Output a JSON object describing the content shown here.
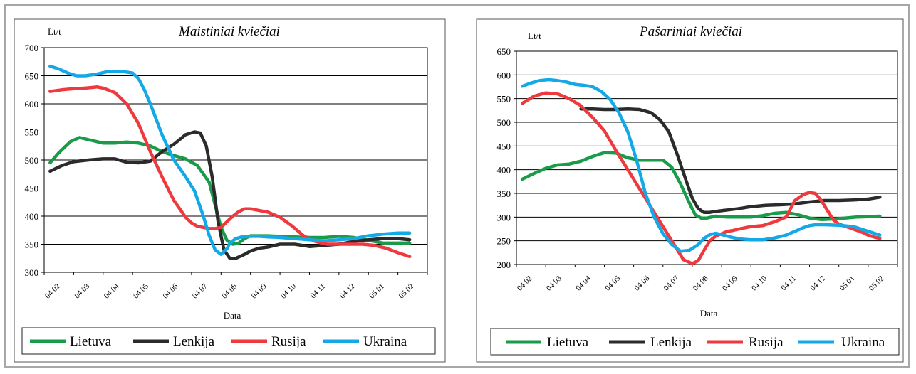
{
  "colors": {
    "Lietuva": "#1a9b4a",
    "Lenkija": "#2b2b2b",
    "Rusija": "#ee3a3f",
    "Ukraina": "#14a9e6"
  },
  "chart_data": [
    {
      "type": "line",
      "title": "Maistiniai kviečiai",
      "ylabel": "Lt/t",
      "xlabel": "Data",
      "ylim": [
        300,
        700
      ],
      "yticks": [
        "700",
        "650",
        "600",
        "550",
        "500",
        "450",
        "400",
        "350",
        "300"
      ],
      "categories": [
        "04 02",
        "04 03",
        "04 04",
        "04 05",
        "04 06",
        "04 07",
        "04 08",
        "04 09",
        "04 10",
        "04 11",
        "04 12",
        "05 01",
        "05 02"
      ],
      "grid": "horizontal",
      "legend": "bottom",
      "series": [
        {
          "name": "Lietuva",
          "x": [
            0.2,
            0.5,
            0.9,
            1.2,
            1.6,
            2.0,
            2.4,
            2.8,
            3.2,
            3.6,
            4.0,
            4.4,
            4.8,
            5.2,
            5.6,
            5.8,
            6.0,
            6.2,
            6.4,
            6.6,
            6.8,
            7.0,
            7.3,
            7.6,
            8.0,
            8.5,
            9.0,
            9.5,
            10.0,
            10.5,
            11.0,
            11.5,
            12.0,
            12.4
          ],
          "y": [
            495,
            513,
            533,
            540,
            535,
            530,
            530,
            532,
            530,
            525,
            515,
            508,
            502,
            490,
            460,
            420,
            380,
            357,
            350,
            352,
            360,
            365,
            365,
            365,
            364,
            363,
            362,
            362,
            364,
            362,
            357,
            352,
            352,
            352
          ]
        },
        {
          "name": "Lenkija",
          "x": [
            0.2,
            0.6,
            1.0,
            1.5,
            2.0,
            2.4,
            2.8,
            3.2,
            3.6,
            4.0,
            4.4,
            4.8,
            5.1,
            5.3,
            5.5,
            5.7,
            5.9,
            6.1,
            6.3,
            6.5,
            6.8,
            7.0,
            7.3,
            7.6,
            8.0,
            8.5,
            9.0,
            9.5,
            10.0,
            10.5,
            11.0,
            11.5,
            12.0,
            12.4
          ],
          "y": [
            480,
            490,
            497,
            500,
            502,
            502,
            496,
            495,
            498,
            515,
            528,
            545,
            550,
            548,
            525,
            470,
            390,
            340,
            325,
            325,
            332,
            338,
            343,
            345,
            350,
            350,
            346,
            348,
            350,
            355,
            358,
            360,
            360,
            358
          ]
        },
        {
          "name": "Rusija",
          "x": [
            0.2,
            0.6,
            1.0,
            1.4,
            1.8,
            2.0,
            2.4,
            2.8,
            3.2,
            3.6,
            4.0,
            4.4,
            4.8,
            5.0,
            5.2,
            5.4,
            5.6,
            5.8,
            6.0,
            6.2,
            6.4,
            6.6,
            6.8,
            7.0,
            7.3,
            7.6,
            8.0,
            8.4,
            8.8,
            9.2,
            9.6,
            10.0,
            10.4,
            10.8,
            11.2,
            11.6,
            12.0,
            12.4
          ],
          "y": [
            622,
            625,
            627,
            628,
            630,
            628,
            620,
            600,
            565,
            515,
            470,
            428,
            398,
            388,
            382,
            380,
            378,
            378,
            380,
            390,
            400,
            408,
            413,
            413,
            410,
            407,
            398,
            383,
            365,
            355,
            350,
            350,
            350,
            350,
            348,
            343,
            335,
            328
          ]
        },
        {
          "name": "Ukraina",
          "x": [
            0.2,
            0.5,
            0.8,
            1.1,
            1.4,
            1.8,
            2.2,
            2.6,
            3.0,
            3.2,
            3.4,
            3.6,
            4.0,
            4.4,
            4.8,
            5.1,
            5.4,
            5.6,
            5.8,
            6.0,
            6.2,
            6.3,
            6.5,
            6.7,
            7.0,
            7.3,
            7.6,
            8.0,
            8.5,
            9.0,
            9.5,
            10.0,
            10.5,
            11.0,
            11.5,
            12.0,
            12.4
          ],
          "y": [
            667,
            662,
            655,
            650,
            650,
            653,
            658,
            658,
            655,
            645,
            625,
            600,
            545,
            500,
            470,
            445,
            400,
            365,
            340,
            332,
            342,
            352,
            360,
            363,
            364,
            364,
            363,
            362,
            360,
            358,
            356,
            358,
            360,
            365,
            368,
            370,
            370
          ]
        }
      ]
    },
    {
      "type": "line",
      "title": "Pašariniai kviečiai",
      "ylabel": "Lt/t",
      "xlabel": "Data",
      "ylim": [
        200,
        650
      ],
      "yticks": [
        "650",
        "600",
        "550",
        "500",
        "450",
        "400",
        "350",
        "300",
        "250",
        "200"
      ],
      "categories": [
        "04 02",
        "04 03",
        "04 04",
        "04 05",
        "04 06",
        "04 07",
        "04 08",
        "04 09",
        "04 10",
        "04 11",
        "04 12",
        "05 01",
        "05 02"
      ],
      "grid": "horizontal",
      "legend": "bottom",
      "series": [
        {
          "name": "Lietuva",
          "x": [
            0.2,
            0.6,
            1.0,
            1.4,
            1.8,
            2.2,
            2.6,
            3.0,
            3.4,
            3.8,
            4.2,
            4.6,
            5.0,
            5.3,
            5.6,
            5.9,
            6.1,
            6.3,
            6.5,
            6.8,
            7.2,
            7.6,
            8.0,
            8.4,
            8.8,
            9.2,
            9.6,
            10.0,
            10.4,
            10.8,
            11.2,
            11.6,
            12.0,
            12.4
          ],
          "y": [
            380,
            392,
            403,
            410,
            412,
            418,
            428,
            436,
            435,
            425,
            420,
            420,
            420,
            405,
            370,
            330,
            305,
            298,
            298,
            302,
            300,
            300,
            300,
            303,
            308,
            310,
            305,
            298,
            295,
            296,
            298,
            300,
            301,
            302
          ]
        },
        {
          "name": "Lenkija",
          "x": [
            2.2,
            2.6,
            3.0,
            3.4,
            3.8,
            4.2,
            4.6,
            4.9,
            5.2,
            5.5,
            5.8,
            6.0,
            6.2,
            6.4,
            6.6,
            6.8,
            7.2,
            7.6,
            8.0,
            8.5,
            9.0,
            9.5,
            10.0,
            10.5,
            11.0,
            11.5,
            12.0,
            12.4
          ],
          "y": [
            528,
            528,
            527,
            527,
            528,
            527,
            520,
            505,
            480,
            430,
            375,
            340,
            318,
            310,
            310,
            312,
            315,
            318,
            322,
            325,
            326,
            328,
            332,
            335,
            335,
            336,
            338,
            342
          ]
        },
        {
          "name": "Rusija",
          "x": [
            0.2,
            0.6,
            1.0,
            1.4,
            1.8,
            2.2,
            2.6,
            3.0,
            3.4,
            3.8,
            4.2,
            4.6,
            5.0,
            5.4,
            5.7,
            6.0,
            6.2,
            6.4,
            6.6,
            6.8,
            7.0,
            7.2,
            7.4,
            7.6,
            8.0,
            8.4,
            8.8,
            9.2,
            9.5,
            9.8,
            10.0,
            10.2,
            10.4,
            10.6,
            10.8,
            11.0,
            11.4,
            11.8,
            12.0,
            12.2,
            12.4
          ],
          "y": [
            540,
            555,
            562,
            560,
            550,
            535,
            510,
            482,
            440,
            400,
            360,
            320,
            280,
            240,
            210,
            202,
            208,
            230,
            250,
            260,
            265,
            270,
            272,
            275,
            280,
            282,
            290,
            300,
            335,
            348,
            352,
            350,
            335,
            315,
            295,
            285,
            277,
            268,
            262,
            258,
            255
          ]
        },
        {
          "name": "Ukraina",
          "x": [
            0.2,
            0.5,
            0.8,
            1.1,
            1.4,
            1.7,
            2.0,
            2.3,
            2.6,
            2.9,
            3.2,
            3.5,
            3.8,
            4.1,
            4.4,
            4.7,
            5.0,
            5.3,
            5.6,
            5.9,
            6.2,
            6.4,
            6.6,
            6.8,
            7.0,
            7.3,
            7.6,
            8.0,
            8.4,
            8.8,
            9.2,
            9.5,
            9.8,
            10.0,
            10.2,
            10.5,
            11.0,
            11.5,
            12.0,
            12.4
          ],
          "y": [
            576,
            583,
            588,
            590,
            588,
            585,
            580,
            578,
            575,
            565,
            548,
            520,
            480,
            420,
            350,
            300,
            265,
            242,
            228,
            230,
            242,
            255,
            263,
            266,
            263,
            258,
            254,
            252,
            252,
            256,
            262,
            270,
            278,
            282,
            284,
            284,
            283,
            280,
            270,
            262
          ]
        }
      ]
    }
  ]
}
